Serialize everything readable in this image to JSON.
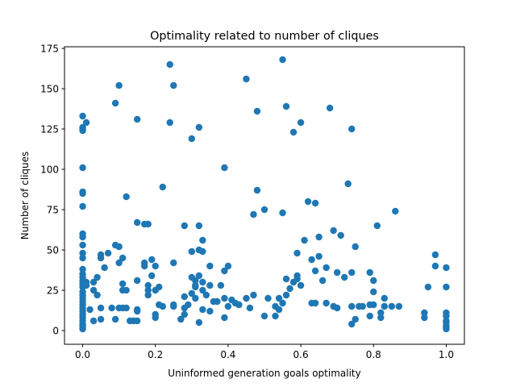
{
  "chart_data": {
    "type": "scatter",
    "title": "Optimality related to number of cliques",
    "xlabel": "Uninformed generation goals optimality",
    "ylabel": "Number of cliques",
    "xlim": [
      -0.05,
      1.05
    ],
    "ylim": [
      -8.5,
      176
    ],
    "xticks": [
      0.0,
      0.2,
      0.4,
      0.6,
      0.8,
      1.0
    ],
    "xtick_labels": [
      "0.0",
      "0.2",
      "0.4",
      "0.6",
      "0.8",
      "1.0"
    ],
    "yticks": [
      0,
      25,
      50,
      75,
      100,
      125,
      150,
      175
    ],
    "ytick_labels": [
      "0",
      "25",
      "50",
      "75",
      "100",
      "125",
      "150",
      "175"
    ],
    "grid": false,
    "legend": "none",
    "marker_color": "#1f77b4",
    "series": [
      {
        "points": [
          [
            0.0,
            133
          ],
          [
            0.0,
            126
          ],
          [
            0.0,
            125
          ],
          [
            0.0,
            124
          ],
          [
            0.0,
            101
          ],
          [
            0.0,
            86
          ],
          [
            0.0,
            85
          ],
          [
            0.0,
            77
          ],
          [
            0.0,
            60
          ],
          [
            0.0,
            58
          ],
          [
            0.0,
            53
          ],
          [
            0.0,
            48
          ],
          [
            0.0,
            45
          ],
          [
            0.0,
            38
          ],
          [
            0.0,
            35
          ],
          [
            0.0,
            33
          ],
          [
            0.0,
            31
          ],
          [
            0.0,
            29
          ],
          [
            0.0,
            27
          ],
          [
            0.0,
            24
          ],
          [
            0.0,
            22
          ],
          [
            0.0,
            20
          ],
          [
            0.0,
            18
          ],
          [
            0.0,
            16
          ],
          [
            0.0,
            14
          ],
          [
            0.0,
            12
          ],
          [
            0.0,
            10
          ],
          [
            0.0,
            8
          ],
          [
            0.0,
            6
          ],
          [
            0.0,
            4
          ],
          [
            0.0,
            3
          ],
          [
            0.0,
            2
          ],
          [
            0.0,
            1
          ],
          [
            0.01,
            129
          ],
          [
            0.01,
            30
          ],
          [
            0.01,
            28
          ],
          [
            0.02,
            13
          ],
          [
            0.03,
            30
          ],
          [
            0.03,
            25
          ],
          [
            0.03,
            6
          ],
          [
            0.04,
            33
          ],
          [
            0.04,
            22
          ],
          [
            0.05,
            47
          ],
          [
            0.05,
            45
          ],
          [
            0.05,
            14
          ],
          [
            0.05,
            7
          ],
          [
            0.06,
            39
          ],
          [
            0.07,
            48
          ],
          [
            0.08,
            14
          ],
          [
            0.09,
            141
          ],
          [
            0.09,
            53
          ],
          [
            0.09,
            7
          ],
          [
            0.1,
            152
          ],
          [
            0.1,
            52
          ],
          [
            0.1,
            42
          ],
          [
            0.1,
            14
          ],
          [
            0.11,
            45
          ],
          [
            0.11,
            29
          ],
          [
            0.11,
            25
          ],
          [
            0.11,
            14
          ],
          [
            0.12,
            83
          ],
          [
            0.12,
            25
          ],
          [
            0.12,
            14
          ],
          [
            0.13,
            6
          ],
          [
            0.14,
            6
          ],
          [
            0.15,
            131
          ],
          [
            0.15,
            67
          ],
          [
            0.15,
            31
          ],
          [
            0.15,
            13
          ],
          [
            0.15,
            12
          ],
          [
            0.15,
            6
          ],
          [
            0.17,
            66
          ],
          [
            0.17,
            42
          ],
          [
            0.17,
            40
          ],
          [
            0.18,
            66
          ],
          [
            0.18,
            28
          ],
          [
            0.18,
            25
          ],
          [
            0.18,
            22
          ],
          [
            0.19,
            44
          ],
          [
            0.19,
            34
          ],
          [
            0.2,
            40
          ],
          [
            0.2,
            25
          ],
          [
            0.2,
            10
          ],
          [
            0.2,
            8
          ],
          [
            0.21,
            27
          ],
          [
            0.21,
            16
          ],
          [
            0.22,
            89
          ],
          [
            0.22,
            15
          ],
          [
            0.24,
            165
          ],
          [
            0.24,
            129
          ],
          [
            0.25,
            152
          ],
          [
            0.25,
            42
          ],
          [
            0.25,
            16
          ],
          [
            0.25,
            15
          ],
          [
            0.27,
            7
          ],
          [
            0.28,
            65
          ],
          [
            0.28,
            21
          ],
          [
            0.28,
            14
          ],
          [
            0.28,
            10
          ],
          [
            0.29,
            16
          ],
          [
            0.3,
            119
          ],
          [
            0.3,
            49
          ],
          [
            0.3,
            33
          ],
          [
            0.3,
            23
          ],
          [
            0.31,
            31
          ],
          [
            0.31,
            28
          ],
          [
            0.31,
            27
          ],
          [
            0.31,
            20
          ],
          [
            0.32,
            126
          ],
          [
            0.32,
            65
          ],
          [
            0.32,
            50
          ],
          [
            0.32,
            34
          ],
          [
            0.32,
            5
          ],
          [
            0.33,
            56
          ],
          [
            0.33,
            49
          ],
          [
            0.33,
            30
          ],
          [
            0.33,
            25
          ],
          [
            0.33,
            13
          ],
          [
            0.34,
            22
          ],
          [
            0.35,
            40
          ],
          [
            0.35,
            28
          ],
          [
            0.35,
            12
          ],
          [
            0.36,
            18
          ],
          [
            0.37,
            18
          ],
          [
            0.38,
            28
          ],
          [
            0.39,
            101
          ],
          [
            0.39,
            37
          ],
          [
            0.39,
            20
          ],
          [
            0.39,
            8
          ],
          [
            0.4,
            40
          ],
          [
            0.4,
            15
          ],
          [
            0.41,
            19
          ],
          [
            0.42,
            17
          ],
          [
            0.43,
            16
          ],
          [
            0.45,
            156
          ],
          [
            0.45,
            20
          ],
          [
            0.46,
            14
          ],
          [
            0.47,
            72
          ],
          [
            0.47,
            22
          ],
          [
            0.48,
            136
          ],
          [
            0.48,
            87
          ],
          [
            0.5,
            75
          ],
          [
            0.5,
            9
          ],
          [
            0.51,
            20
          ],
          [
            0.53,
            15
          ],
          [
            0.53,
            9
          ],
          [
            0.54,
            20
          ],
          [
            0.54,
            13
          ],
          [
            0.55,
            168
          ],
          [
            0.55,
            73
          ],
          [
            0.55,
            17
          ],
          [
            0.56,
            139
          ],
          [
            0.56,
            32
          ],
          [
            0.56,
            22
          ],
          [
            0.57,
            26
          ],
          [
            0.58,
            123
          ],
          [
            0.58,
            30
          ],
          [
            0.59,
            48
          ],
          [
            0.59,
            34
          ],
          [
            0.59,
            32
          ],
          [
            0.6,
            129
          ],
          [
            0.6,
            28
          ],
          [
            0.61,
            56
          ],
          [
            0.62,
            80
          ],
          [
            0.63,
            44
          ],
          [
            0.63,
            17
          ],
          [
            0.64,
            79
          ],
          [
            0.64,
            37
          ],
          [
            0.64,
            17
          ],
          [
            0.65,
            58
          ],
          [
            0.65,
            46
          ],
          [
            0.66,
            31
          ],
          [
            0.67,
            39
          ],
          [
            0.67,
            17
          ],
          [
            0.68,
            138
          ],
          [
            0.69,
            62
          ],
          [
            0.69,
            15
          ],
          [
            0.7,
            36
          ],
          [
            0.7,
            14
          ],
          [
            0.71,
            59
          ],
          [
            0.72,
            33
          ],
          [
            0.73,
            91
          ],
          [
            0.74,
            125
          ],
          [
            0.74,
            36
          ],
          [
            0.74,
            15
          ],
          [
            0.74,
            4
          ],
          [
            0.75,
            52
          ],
          [
            0.75,
            7
          ],
          [
            0.76,
            15
          ],
          [
            0.77,
            15
          ],
          [
            0.79,
            36
          ],
          [
            0.79,
            16
          ],
          [
            0.79,
            9
          ],
          [
            0.8,
            31
          ],
          [
            0.8,
            24
          ],
          [
            0.8,
            16
          ],
          [
            0.81,
            65
          ],
          [
            0.82,
            11
          ],
          [
            0.82,
            8
          ],
          [
            0.83,
            20
          ],
          [
            0.83,
            15
          ],
          [
            0.85,
            15
          ],
          [
            0.86,
            74
          ],
          [
            0.87,
            15
          ],
          [
            0.94,
            11
          ],
          [
            0.94,
            8
          ],
          [
            0.95,
            27
          ],
          [
            0.97,
            47
          ],
          [
            0.97,
            40
          ],
          [
            1.0,
            39
          ],
          [
            1.0,
            27
          ],
          [
            1.0,
            11
          ],
          [
            1.0,
            9
          ],
          [
            1.0,
            6
          ],
          [
            1.0,
            5
          ],
          [
            1.0,
            3
          ],
          [
            1.0,
            2
          ],
          [
            1.0,
            1
          ]
        ]
      }
    ]
  }
}
